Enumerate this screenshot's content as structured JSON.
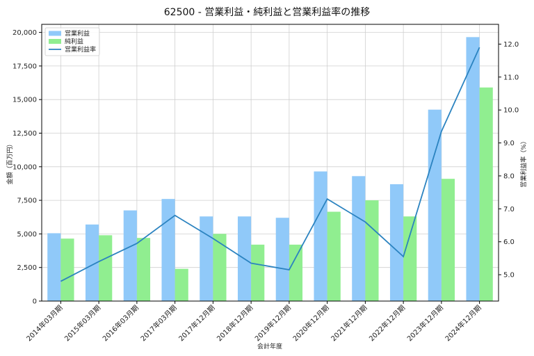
{
  "chart_data": {
    "type": "bar",
    "title": "62500 - 営業利益・純利益と営業利益率の推移",
    "xlabel": "会計年度",
    "ylabel": "金額（百万円）",
    "y2label": "営業利益率（%）",
    "categories": [
      "2014年03月期",
      "2015年03月期",
      "2016年03月期",
      "2017年03月期",
      "2017年12月期",
      "2018年12月期",
      "2019年12月期",
      "2020年12月期",
      "2021年12月期",
      "2022年12月期",
      "2023年12月期",
      "2024年12月期"
    ],
    "ylim": [
      0,
      20600
    ],
    "y2lim": [
      4.2,
      12.6
    ],
    "yticks": [
      0,
      2500,
      5000,
      7500,
      10000,
      12500,
      15000,
      17500,
      20000
    ],
    "ytick_labels": [
      "0",
      "2,500",
      "5,000",
      "7,500",
      "10,000",
      "12,500",
      "15,000",
      "17,500",
      "20,000"
    ],
    "y2ticks": [
      5.0,
      6.0,
      7.0,
      8.0,
      9.0,
      10.0,
      11.0,
      12.0
    ],
    "y2tick_labels": [
      "5.0",
      "6.0",
      "7.0",
      "8.0",
      "9.0",
      "10.0",
      "11.0",
      "12.0"
    ],
    "grid": true,
    "legend_position": "top-left",
    "series": [
      {
        "name": "営業利益",
        "kind": "bar",
        "color": "#90c9f9",
        "values": [
          5050,
          5700,
          6750,
          7600,
          6300,
          6300,
          6200,
          9650,
          9300,
          8700,
          14250,
          19650
        ]
      },
      {
        "name": "純利益",
        "kind": "bar",
        "color": "#90ee90",
        "values": [
          4650,
          4900,
          4700,
          2400,
          5000,
          4200,
          4200,
          6650,
          7500,
          6300,
          9100,
          15900
        ]
      },
      {
        "name": "営業利益率",
        "kind": "line",
        "axis": "right",
        "color": "#2b83c0",
        "values": [
          4.8,
          5.4,
          5.95,
          6.8,
          6.1,
          5.35,
          5.15,
          7.3,
          6.6,
          5.55,
          9.35,
          11.9
        ]
      }
    ]
  }
}
